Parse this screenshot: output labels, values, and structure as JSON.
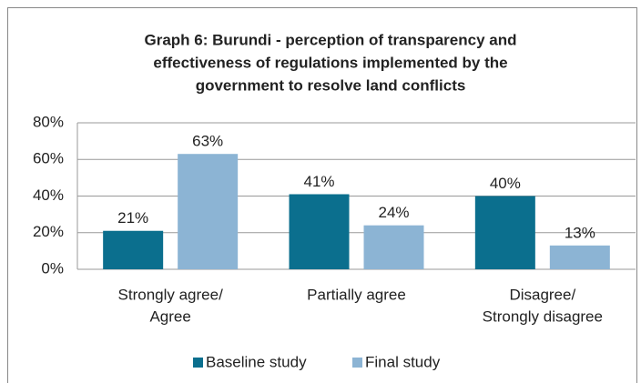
{
  "chart_data": {
    "type": "bar",
    "title": [
      "Graph 6: Burundi - perception of transparency and",
      "effectiveness of regulations implemented by the",
      "government to resolve land conflicts"
    ],
    "categories": [
      [
        "Strongly agree/",
        "Agree"
      ],
      [
        "Partially agree"
      ],
      [
        "Disagree/",
        "Strongly disagree"
      ]
    ],
    "series": [
      {
        "name": "Baseline study",
        "color": "#0b6f8e",
        "values": [
          21,
          41,
          40
        ],
        "value_labels": [
          "21%",
          "41%",
          "40%"
        ]
      },
      {
        "name": "Final study",
        "color": "#8cb4d4",
        "values": [
          63,
          24,
          13
        ],
        "value_labels": [
          "63%",
          "24%",
          "13%"
        ]
      }
    ],
    "ylim": [
      0,
      80
    ],
    "yticks": [
      {
        "value": 0,
        "label": "0%"
      },
      {
        "value": 20,
        "label": "20%"
      },
      {
        "value": 40,
        "label": "40%"
      },
      {
        "value": 60,
        "label": "60%"
      },
      {
        "value": 80,
        "label": "80%"
      }
    ],
    "grid": true,
    "legend": "bottom"
  }
}
